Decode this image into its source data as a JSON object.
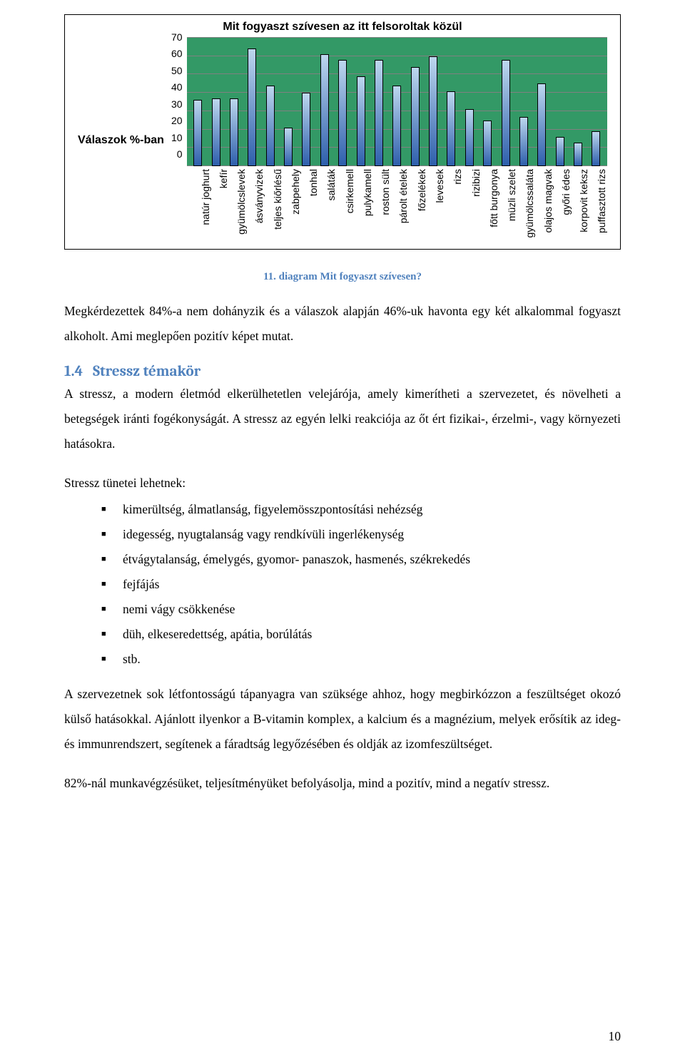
{
  "chart": {
    "type": "bar",
    "title": "Mit fogyaszt szívesen az itt felsoroltak közül",
    "y_axis_label": "Válaszok %-ban",
    "ymax": 70,
    "ytick_step": 10,
    "yticks": [
      "70",
      "60",
      "50",
      "40",
      "30",
      "20",
      "10",
      "0"
    ],
    "plot_bg": "#339966",
    "bar_fill_top": "#bdd7ee",
    "bar_fill_bottom": "#2e5fac",
    "grid_color": "#808080",
    "categories": [
      "natúr joghurt",
      "kefír",
      "gyümölcslevek",
      "ásványvizek",
      "teljes kiőrlésű",
      "zabpehely",
      "tonhal",
      "saláták",
      "csirkemell",
      "pulykamell",
      "roston sült",
      "párolt ételek",
      "főzelékek",
      "levesek",
      "rizs",
      "rizibizi",
      "főtt burgonya",
      "müzli szelet",
      "gyümölcssaláta",
      "olajos magvak",
      "győri édes",
      "korpovit keksz",
      "puffasztott rizs"
    ],
    "values": [
      36,
      37,
      37,
      64,
      44,
      21,
      40,
      61,
      58,
      49,
      58,
      44,
      54,
      60,
      41,
      31,
      25,
      58,
      27,
      45,
      16,
      13,
      19
    ]
  },
  "caption": {
    "text": "11. diagram Mit fogyaszt szívesen?",
    "color": "#4f81bd"
  },
  "para1": "Megkérdezettek 84%-a nem dohányzik és a válaszok alapján 46%-uk havonta egy két alkalommal fogyaszt alkoholt. Ami meglepően pozitív képet mutat.",
  "section": {
    "number": "1.4",
    "title": "Stressz témakör",
    "color": "#4f81bd"
  },
  "para2": "A stressz, a modern életmód elkerülhetetlen velejárója, amely kimerítheti a szervezetet, és növelheti a betegségek iránti fogékonyságát. A stressz az egyén lelki reakciója az őt ért fizikai-, érzelmi-, vagy környezeti hatásokra.",
  "list_intro": "Stressz tünetei lehetnek:",
  "bullets": [
    "kimerültség, álmatlanság, figyelemösszpontosítási nehézség",
    "idegesség, nyugtalanság vagy rendkívüli ingerlékenység",
    "étvágytalanság, émelygés, gyomor- panaszok, hasmenés, székrekedés",
    "fejfájás",
    "nemi vágy csökkenése",
    "düh, elkeseredettség, apátia, borúlátás",
    "stb."
  ],
  "para3": "A szervezetnek sok létfontosságú tápanyagra van szüksége ahhoz, hogy megbirkózzon a feszültséget okozó külső hatásokkal. Ajánlott ilyenkor a B-vitamin komplex, a kalcium és a magnézium, melyek erősítik az ideg- és immunrendszert, segítenek a fáradtság legyőzésében és oldják az izomfeszültséget.",
  "para4": "82%-nál munkavégzésüket, teljesítményüket befolyásolja, mind a pozitív, mind a negatív stressz.",
  "page_number": "10"
}
